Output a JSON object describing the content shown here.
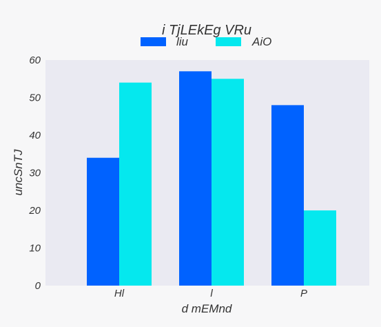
{
  "chart_data": {
    "type": "bar",
    "title": "i TjLEkEg  VRu",
    "xlabel": "d mEMnd",
    "ylabel": "uncSnTJ",
    "categories": [
      "Hl",
      "l",
      "P"
    ],
    "series": [
      {
        "name": "liu",
        "values": [
          34,
          57,
          48
        ],
        "color": "#0062ff"
      },
      {
        "name": "AiO",
        "values": [
          54,
          55,
          20
        ],
        "color": "#05e8ee"
      }
    ],
    "ylim": [
      0,
      60
    ],
    "yticks": [
      0,
      10,
      20,
      30,
      40,
      50,
      60
    ],
    "grid": false,
    "legend": "top-center",
    "plot_background": "#eaeaf2"
  }
}
